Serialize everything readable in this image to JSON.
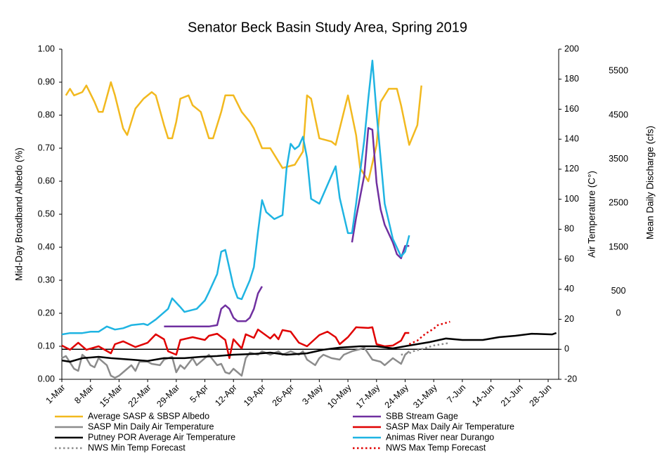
{
  "chart_data": {
    "type": "line",
    "title": "Senator Beck Basin Study Area, Spring 2019",
    "y_label": "Mid-Day Broadband Albedo (%)",
    "y2_label": "Air Temperature (C°)",
    "y3_label": "Mean Daily Discharge (cfs)",
    "xticks": [
      "1-Mar",
      "8-Mar",
      "15-Mar",
      "22-Mar",
      "29-Mar",
      "5-Apr",
      "12-Apr",
      "19-Apr",
      "26-Apr",
      "3-May",
      "10-May",
      "17-May",
      "24-May",
      "31-May",
      "7-Jun",
      "14-Jun",
      "21-Jun",
      "28-Jun"
    ],
    "ylim": [
      0,
      1
    ],
    "yticks": [
      {
        "value": 0,
        "label": "0.00"
      },
      {
        "value": 0.1,
        "label": "0.10"
      },
      {
        "value": 0.2,
        "label": "0.20"
      },
      {
        "value": 0.3,
        "label": "0.30"
      },
      {
        "value": 0.4,
        "label": "0.40"
      },
      {
        "value": 0.5,
        "label": "0.50"
      },
      {
        "value": 0.6,
        "label": "0.60"
      },
      {
        "value": 0.7,
        "label": "0.70"
      },
      {
        "value": 0.8,
        "label": "0.80"
      },
      {
        "value": 0.9,
        "label": "0.90"
      },
      {
        "value": 1,
        "label": "1.00"
      }
    ],
    "y2lim": [
      -20,
      200
    ],
    "y2ticks": [
      -20,
      0,
      20,
      40,
      60,
      80,
      100,
      120,
      140,
      160,
      180,
      200
    ],
    "y3lim": [
      -1500,
      6000
    ],
    "y3ticks": [
      0,
      500,
      1500,
      2500,
      3500,
      4500,
      5500
    ],
    "series": [
      {
        "name": "Average SASP & SBSP Albedo",
        "color": "#f2b91f",
        "style": "solid",
        "x": [
          "2-Mar",
          "3-Mar",
          "4-Mar",
          "6-Mar",
          "7-Mar",
          "9-Mar",
          "10-Mar",
          "11-Mar",
          "13-Mar",
          "14-Mar",
          "16-Mar",
          "17-Mar",
          "19-Mar",
          "21-Mar",
          "23-Mar",
          "24-Mar",
          "26-Mar",
          "27-Mar",
          "28-Mar",
          "29-Mar",
          "30-Mar",
          "1-Apr",
          "2-Apr",
          "4-Apr",
          "6-Apr",
          "7-Apr",
          "9-Apr",
          "10-Apr",
          "12-Apr",
          "14-Apr",
          "16-Apr",
          "17-Apr",
          "19-Apr",
          "21-Apr",
          "23-Apr",
          "24-Apr",
          "27-Apr",
          "29-Apr",
          "30-Apr",
          "1-May",
          "3-May",
          "6-May",
          "7-May",
          "10-May",
          "12-May",
          "13-May",
          "15-May",
          "17-May",
          "18-May",
          "20-May",
          "22-May",
          "23-May",
          "25-May",
          "27-May",
          "28-May"
        ],
        "values": [
          0.86,
          0.88,
          0.86,
          0.87,
          0.89,
          0.84,
          0.81,
          0.81,
          0.9,
          0.86,
          0.76,
          0.74,
          0.82,
          0.85,
          0.87,
          0.86,
          0.77,
          0.73,
          0.73,
          0.78,
          0.85,
          0.86,
          0.83,
          0.81,
          0.73,
          0.73,
          0.81,
          0.86,
          0.86,
          0.81,
          0.78,
          0.76,
          0.7,
          0.7,
          0.66,
          0.64,
          0.65,
          0.69,
          0.86,
          0.85,
          0.73,
          0.72,
          0.71,
          0.86,
          0.74,
          0.64,
          0.6,
          0.71,
          0.84,
          0.88,
          0.88,
          0.83,
          0.71,
          0.77,
          0.89
        ]
      },
      {
        "name": "SBB Stream Gage",
        "color": "#7030a0",
        "style": "solid",
        "axis": "y3",
        "x": [
          "26-Mar",
          "1-Apr",
          "6-Apr",
          "8-Apr",
          "9-Apr",
          "10-Apr",
          "11-Apr",
          "12-Apr",
          "13-Apr",
          "15-Apr",
          "16-Apr",
          "17-Apr",
          "18-Apr",
          "19-Apr",
          "30-Apr",
          "11-May",
          "12-May",
          "14-May",
          "15-May",
          "16-May",
          "17-May",
          "18-May",
          "19-May",
          "21-May",
          "22-May",
          "23-May",
          "24-May",
          "25-May"
        ],
        "values": [
          -300,
          -300,
          -300,
          -270,
          100,
          180,
          100,
          -100,
          -180,
          -180,
          -100,
          100,
          450,
          610,
          null,
          1610,
          2170,
          3130,
          4210,
          4170,
          2970,
          2360,
          2010,
          1610,
          1340,
          1250,
          1530,
          1530
        ]
      },
      {
        "name": "SASP Min Daily Air Temperature",
        "color": "#8c8c8c",
        "style": "solid",
        "axis": "y2",
        "x": [
          "1-Mar",
          "2-Mar",
          "4-Mar",
          "5-Mar",
          "6-Mar",
          "7-Mar",
          "8-Mar",
          "9-Mar",
          "10-Mar",
          "12-Mar",
          "13-Mar",
          "14-Mar",
          "15-Mar",
          "16-Mar",
          "18-Mar",
          "19-Mar",
          "20-Mar",
          "22-Mar",
          "23-Mar",
          "25-Mar",
          "26-Mar",
          "27-Mar",
          "28-Mar",
          "29-Mar",
          "30-Mar",
          "31-Mar",
          "2-Apr",
          "3-Apr",
          "5-Apr",
          "6-Apr",
          "8-Apr",
          "9-Apr",
          "10-Apr",
          "11-Apr",
          "12-Apr",
          "14-Apr",
          "15-Apr",
          "16-Apr",
          "18-Apr",
          "19-Apr",
          "21-Apr",
          "23-Apr",
          "24-Apr",
          "26-Apr",
          "28-Apr",
          "29-Apr",
          "30-Apr",
          "2-May",
          "3-May",
          "4-May",
          "6-May",
          "8-May",
          "9-May",
          "11-May",
          "13-May",
          "14-May",
          "16-May",
          "18-May",
          "19-May",
          "21-May",
          "23-May",
          "24-May",
          "25-May"
        ],
        "values": [
          -5.9,
          -4.5,
          -13,
          -14.4,
          -3.6,
          -5.9,
          -10.6,
          -12,
          -5.9,
          -10.6,
          -17.6,
          -19,
          -17.6,
          -15.3,
          -10.6,
          -14.4,
          -8.3,
          -8.3,
          -9.7,
          -10.6,
          -6.9,
          -5.9,
          -5,
          -15.3,
          -10.6,
          -13,
          -5.9,
          -10.6,
          -5.9,
          -3.6,
          -10.6,
          -9.7,
          -15.3,
          -16.2,
          -13,
          -17.6,
          -5.9,
          -2.2,
          -3.6,
          -1.3,
          -3.6,
          -1.3,
          -3.6,
          -1.3,
          -3.6,
          -1.3,
          -6.9,
          -10.6,
          -5.9,
          -3.6,
          -5.9,
          -6.9,
          -3.6,
          -1.3,
          0.1,
          1.1,
          -6.9,
          -8.3,
          -10.6,
          -5.9,
          -9.7,
          -3.6,
          -1.3
        ]
      },
      {
        "name": "SASP Max Daily Air Temperature",
        "color": "#e00000",
        "style": "solid",
        "axis": "y2",
        "x": [
          "1-Mar",
          "3-Mar",
          "5-Mar",
          "7-Mar",
          "10-Mar",
          "13-Mar",
          "14-Mar",
          "16-Mar",
          "19-Mar",
          "22-Mar",
          "24-Mar",
          "26-Mar",
          "27-Mar",
          "29-Mar",
          "30-Mar",
          "2-Apr",
          "5-Apr",
          "6-Apr",
          "8-Apr",
          "10-Apr",
          "11-Apr",
          "12-Apr",
          "14-Apr",
          "15-Apr",
          "17-Apr",
          "18-Apr",
          "21-Apr",
          "22-Apr",
          "23-Apr",
          "24-Apr",
          "26-Apr",
          "28-Apr",
          "30-Apr",
          "3-May",
          "5-May",
          "7-May",
          "8-May",
          "10-May",
          "12-May",
          "15-May",
          "16-May",
          "17-May",
          "19-May",
          "21-May",
          "23-May",
          "24-May",
          "25-May"
        ],
        "values": [
          2.5,
          -0.3,
          4.4,
          -0.3,
          2.0,
          -2.7,
          3.4,
          5.3,
          1.5,
          4.4,
          10.0,
          6.7,
          -1.3,
          -3.6,
          6.2,
          8.1,
          6.2,
          9.0,
          10.4,
          6.2,
          -5.9,
          6.7,
          0.6,
          10.0,
          7.6,
          13.2,
          7.2,
          10.0,
          6.7,
          12.8,
          11.8,
          4.4,
          2.0,
          9.5,
          11.8,
          8.1,
          3.4,
          8.1,
          14.7,
          14.2,
          14.7,
          3.4,
          2.0,
          2.5,
          5.8,
          10.9,
          10.9
        ]
      },
      {
        "name": "Putney POR Average Air Temperature",
        "color": "#000000",
        "style": "solid",
        "axis": "y2",
        "x": [
          "1-Mar",
          "3-Mar",
          "6-Mar",
          "10-Mar",
          "13-Mar",
          "18-Mar",
          "22-Mar",
          "26-Mar",
          "31-Mar",
          "4-Apr",
          "8-Apr",
          "12-Apr",
          "17-Apr",
          "21-Apr",
          "25-Apr",
          "30-Apr",
          "4-May",
          "8-May",
          "13-May",
          "17-May",
          "21-May",
          "25-May",
          "30-May",
          "3-Jun",
          "7-Jun",
          "12-Jun",
          "16-Jun",
          "20-Jun",
          "24-Jun",
          "29-Jun",
          "30-Jun"
        ],
        "values": [
          -7.4,
          -8.3,
          -5.9,
          -5.0,
          -5.9,
          -6.9,
          -7.8,
          -5.9,
          -5.9,
          -5.0,
          -4.5,
          -3.6,
          -3.1,
          -2.2,
          -3.6,
          -2.7,
          -0.3,
          1.1,
          2.0,
          2.0,
          0.6,
          2.5,
          4.8,
          7.2,
          6.2,
          6.2,
          8.1,
          9.0,
          10.4,
          9.9,
          10.9
        ]
      },
      {
        "name": "Animas River near Durango",
        "color": "#1fb4e2",
        "style": "solid",
        "axis": "y3",
        "x": [
          "1-Mar",
          "3-Mar",
          "6-Mar",
          "8-Mar",
          "10-Mar",
          "12-Mar",
          "14-Mar",
          "16-Mar",
          "18-Mar",
          "21-Mar",
          "22-Mar",
          "24-Mar",
          "27-Mar",
          "28-Mar",
          "30-Mar",
          "31-Mar",
          "3-Apr",
          "5-Apr",
          "6-Apr",
          "8-Apr",
          "9-Apr",
          "10-Apr",
          "12-Apr",
          "13-Apr",
          "14-Apr",
          "16-Apr",
          "17-Apr",
          "18-Apr",
          "19-Apr",
          "20-Apr",
          "22-Apr",
          "24-Apr",
          "25-Apr",
          "26-Apr",
          "27-Apr",
          "28-Apr",
          "29-Apr",
          "30-Apr",
          "1-May",
          "3-May",
          "6-May",
          "7-May",
          "8-May",
          "10-May",
          "11-May",
          "12-May",
          "14-May",
          "15-May",
          "16-May",
          "17-May",
          "19-May",
          "21-May",
          "23-May",
          "24-May",
          "25-May"
        ],
        "values": [
          -480,
          -450,
          -450,
          -420,
          -420,
          -300,
          -370,
          -340,
          -270,
          -240,
          -270,
          -140,
          100,
          340,
          140,
          30,
          100,
          290,
          480,
          890,
          1400,
          1440,
          610,
          350,
          320,
          750,
          1050,
          1850,
          2570,
          2300,
          2140,
          2230,
          3290,
          3850,
          3730,
          3800,
          4010,
          3530,
          2600,
          2490,
          3130,
          3340,
          2620,
          1820,
          1820,
          2490,
          3930,
          4880,
          5740,
          4560,
          2490,
          1690,
          1290,
          1400,
          1770
        ]
      },
      {
        "name": "NWS Min Temp Forecast",
        "color": "#8c8c8c",
        "style": "dotted",
        "axis": "y2",
        "x": [
          "23-May",
          "25-May",
          "26-May",
          "28-May",
          "31-May",
          "2-Jun",
          "4-Jun"
        ],
        "values": [
          -3.6,
          -2.7,
          -1.3,
          0.1,
          2.5,
          3.4,
          4.3
        ]
      },
      {
        "name": "NWS Max Temp Forecast",
        "color": "#e00000",
        "style": "dotted",
        "axis": "y2",
        "x": [
          "25-May",
          "27-May",
          "29-May",
          "31-May",
          "1-Jun",
          "4-Jun"
        ],
        "values": [
          3.4,
          5.8,
          10.4,
          13.7,
          16.1,
          18.4
        ]
      }
    ]
  }
}
